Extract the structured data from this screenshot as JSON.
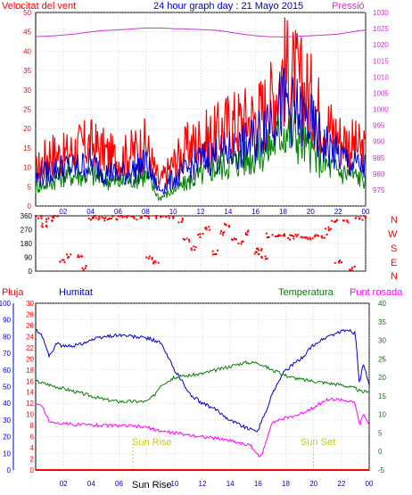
{
  "header": {
    "wind_label": "Velocitat del vent",
    "title": "24 hour graph day : 21 Mayo 2015",
    "pressure_label": "Pressió"
  },
  "colors": {
    "wind_avg": "#008000",
    "wind_gust": "#ff0000",
    "wind_dir": "#ff0000",
    "pressure": "#cc33cc",
    "rain": "#ff0000",
    "humidity": "#0000cc",
    "temperature": "#008000",
    "dewpoint": "#ff00ff",
    "axis": "#000000",
    "grid": "#b0b0b0"
  },
  "panel2": {
    "compass": [
      "N",
      "W",
      "S",
      "E",
      "N"
    ]
  },
  "panel3": {
    "rain_label": "Pluja",
    "humidity_label": "Humitat",
    "temperature_label": "Temperatura",
    "dewpoint_label": "Punt rosada",
    "sunrise_label": "Sun Rise",
    "sunset_label": "Sun Set",
    "sunrise_time": "Sun Rise"
  },
  "chart_data": [
    {
      "type": "line",
      "title": "24 hour graph day : 21 Mayo 2015",
      "x_ticks": [
        "02",
        "04",
        "06",
        "08",
        "10",
        "12",
        "14",
        "16",
        "18",
        "20",
        "22",
        "00"
      ],
      "ylabel": "Velocitat del vent",
      "ylim": [
        0,
        50
      ],
      "y_ticks": [
        0,
        5,
        10,
        15,
        20,
        25,
        30,
        35,
        40,
        45,
        50
      ],
      "y2label": "Pressió",
      "y2lim": [
        970,
        1030
      ],
      "y2_ticks": [
        975,
        980,
        985,
        990,
        995,
        1000,
        1005,
        1010,
        1015,
        1020,
        1025,
        1030
      ],
      "grid": true,
      "series": [
        {
          "name": "Velocitat del vent",
          "axis": "left",
          "color": "#ff0000",
          "x": [
            0,
            1,
            2,
            3,
            4,
            5,
            6,
            7,
            8,
            9,
            10,
            11,
            12,
            13,
            14,
            15,
            16,
            17,
            18,
            19,
            20,
            21,
            22,
            23,
            24
          ],
          "values": [
            9,
            14,
            13,
            15,
            16,
            14,
            12,
            14,
            16,
            6,
            11,
            15,
            17,
            18,
            21,
            22,
            23,
            26,
            35,
            32,
            28,
            22,
            18,
            16,
            14
          ]
        },
        {
          "name": "",
          "axis": "left",
          "color": "#008000",
          "x": [
            0,
            1,
            2,
            3,
            4,
            5,
            6,
            7,
            8,
            9,
            10,
            11,
            12,
            13,
            14,
            15,
            16,
            17,
            18,
            19,
            20,
            21,
            22,
            23,
            24
          ],
          "values": [
            5,
            6,
            8,
            8,
            8,
            7,
            6,
            7,
            8,
            2,
            4,
            6,
            8,
            10,
            11,
            12,
            13,
            15,
            20,
            18,
            14,
            11,
            9,
            8,
            7
          ]
        },
        {
          "name": "",
          "axis": "left",
          "color": "#0000cc",
          "x": [
            0,
            1,
            2,
            3,
            4,
            5,
            6,
            7,
            8,
            9,
            10,
            11,
            12,
            13,
            14,
            15,
            16,
            17,
            18,
            19,
            20,
            21,
            22,
            23,
            24
          ],
          "values": [
            7,
            9,
            10,
            10,
            11,
            9,
            8,
            9,
            11,
            4,
            7,
            9,
            12,
            13,
            14,
            15,
            17,
            24,
            26,
            24,
            21,
            16,
            13,
            11,
            10
          ]
        },
        {
          "name": "Pressió",
          "axis": "right",
          "color": "#cc33cc",
          "x": [
            0,
            1,
            2,
            3,
            4,
            5,
            6,
            7,
            8,
            9,
            10,
            11,
            12,
            13,
            14,
            15,
            16,
            17,
            18,
            19,
            20,
            21,
            22,
            23,
            24
          ],
          "values": [
            1022.5,
            1022.7,
            1023,
            1023.4,
            1024,
            1024.4,
            1024.6,
            1024.9,
            1025.2,
            1025.2,
            1025,
            1024.9,
            1024.7,
            1024.5,
            1024,
            1023.3,
            1022.8,
            1022.5,
            1022.4,
            1022.6,
            1022.8,
            1023,
            1023.3,
            1024,
            1024.6
          ]
        }
      ]
    },
    {
      "type": "scatter",
      "ylabel": "",
      "ylim": [
        0,
        360
      ],
      "y_ticks": [
        0,
        90,
        180,
        270,
        360
      ],
      "grid": true,
      "series": [
        {
          "name": "",
          "color": "#ff0000",
          "x": [
            0.2,
            0.6,
            1,
            1.4,
            2,
            2.3,
            3.2,
            3.5,
            4,
            4.5,
            5,
            5.5,
            6,
            6.5,
            7,
            7.5,
            8,
            8.3,
            8.7,
            9,
            9.5,
            10,
            10.5,
            11,
            11.5,
            12,
            12.5,
            13,
            13.5,
            14,
            14.5,
            15,
            15.5,
            16,
            16.3,
            16.6,
            17,
            17.5,
            18,
            18.5,
            19,
            19.5,
            20,
            20.5,
            21,
            21.3,
            21.7,
            22,
            22.5,
            23,
            23.5,
            24
          ],
          "values": [
            350,
            300,
            330,
            360,
            60,
            100,
            90,
            20,
            345,
            350,
            340,
            355,
            350,
            355,
            350,
            350,
            355,
            90,
            60,
            355,
            350,
            345,
            330,
            200,
            150,
            230,
            280,
            120,
            250,
            300,
            210,
            180,
            250,
            120,
            140,
            90,
            230,
            225,
            230,
            220,
            225,
            230,
            220,
            230,
            225,
            280,
            320,
            60,
            330,
            20,
            350,
            345
          ]
        }
      ]
    },
    {
      "type": "line",
      "x_ticks": [
        "02",
        "04",
        "06",
        "08",
        "10",
        "12",
        "14",
        "16",
        "18",
        "20",
        "22",
        "00"
      ],
      "ylabel": "Humitat",
      "ylim": [
        0,
        100
      ],
      "y_ticks": [
        0,
        10,
        20,
        30,
        40,
        50,
        60,
        70,
        80,
        90,
        100
      ],
      "y_mid_ticks": [
        0,
        2,
        4,
        6,
        8,
        10,
        12,
        14,
        16,
        18,
        20,
        22,
        24,
        26,
        28,
        30
      ],
      "y2lim": [
        -5,
        40
      ],
      "y2_ticks": [
        -5,
        0,
        5,
        10,
        15,
        20,
        25,
        30,
        35,
        40
      ],
      "grid": true,
      "series": [
        {
          "name": "Pluja",
          "color": "#ff0000",
          "x": [
            0,
            24
          ],
          "values": [
            0,
            0
          ]
        },
        {
          "name": "Humitat",
          "color": "#0000cc",
          "x": [
            0,
            0.5,
            1,
            1.5,
            2,
            3,
            4,
            5,
            6,
            7,
            8,
            8.5,
            9,
            10,
            10.5,
            11,
            12,
            13,
            14,
            15,
            15.5,
            16,
            16.3,
            16.6,
            17,
            17.5,
            18,
            19,
            20,
            21,
            22,
            22.5,
            23,
            23.3,
            23.6,
            24
          ],
          "values": [
            84,
            80,
            68,
            76,
            74,
            75,
            78,
            80,
            81,
            80,
            79,
            78,
            76,
            60,
            54,
            46,
            40,
            36,
            30,
            26,
            24,
            24,
            30,
            36,
            45,
            54,
            60,
            66,
            75,
            80,
            83,
            84,
            82,
            52,
            64,
            50
          ]
        },
        {
          "name": "Temperatura",
          "color": "#008000",
          "x": [
            0,
            1,
            2,
            3,
            4,
            5,
            6,
            7,
            8,
            8.5,
            9,
            10,
            11,
            12,
            13,
            14,
            15,
            16,
            16.5,
            17,
            18,
            19,
            20,
            21,
            22,
            23,
            23.5,
            24
          ],
          "values": [
            19,
            18,
            17,
            16,
            15,
            14,
            13.5,
            13.5,
            13.5,
            15,
            18,
            20,
            20.5,
            21,
            22,
            23,
            24,
            24,
            23,
            22,
            20.5,
            19.5,
            19,
            18.5,
            18,
            17,
            16,
            16.5
          ]
        },
        {
          "name": "Punt rosada",
          "color": "#ff00ff",
          "x": [
            0,
            0.5,
            1,
            2,
            3,
            4,
            5,
            6,
            7,
            8,
            9,
            10,
            11,
            12,
            13,
            14,
            15,
            15.5,
            16,
            16.3,
            16.6,
            17,
            18,
            19,
            20,
            21,
            22,
            23,
            23.3,
            23.6,
            24
          ],
          "values": [
            13,
            12,
            8,
            7.5,
            7.2,
            7.2,
            7,
            7,
            6.8,
            6.5,
            5.5,
            5,
            4.5,
            4,
            3.5,
            3,
            2,
            1.5,
            -1,
            -1,
            3,
            8,
            9,
            10,
            12,
            14,
            14,
            13,
            7,
            10,
            7
          ]
        }
      ]
    }
  ]
}
